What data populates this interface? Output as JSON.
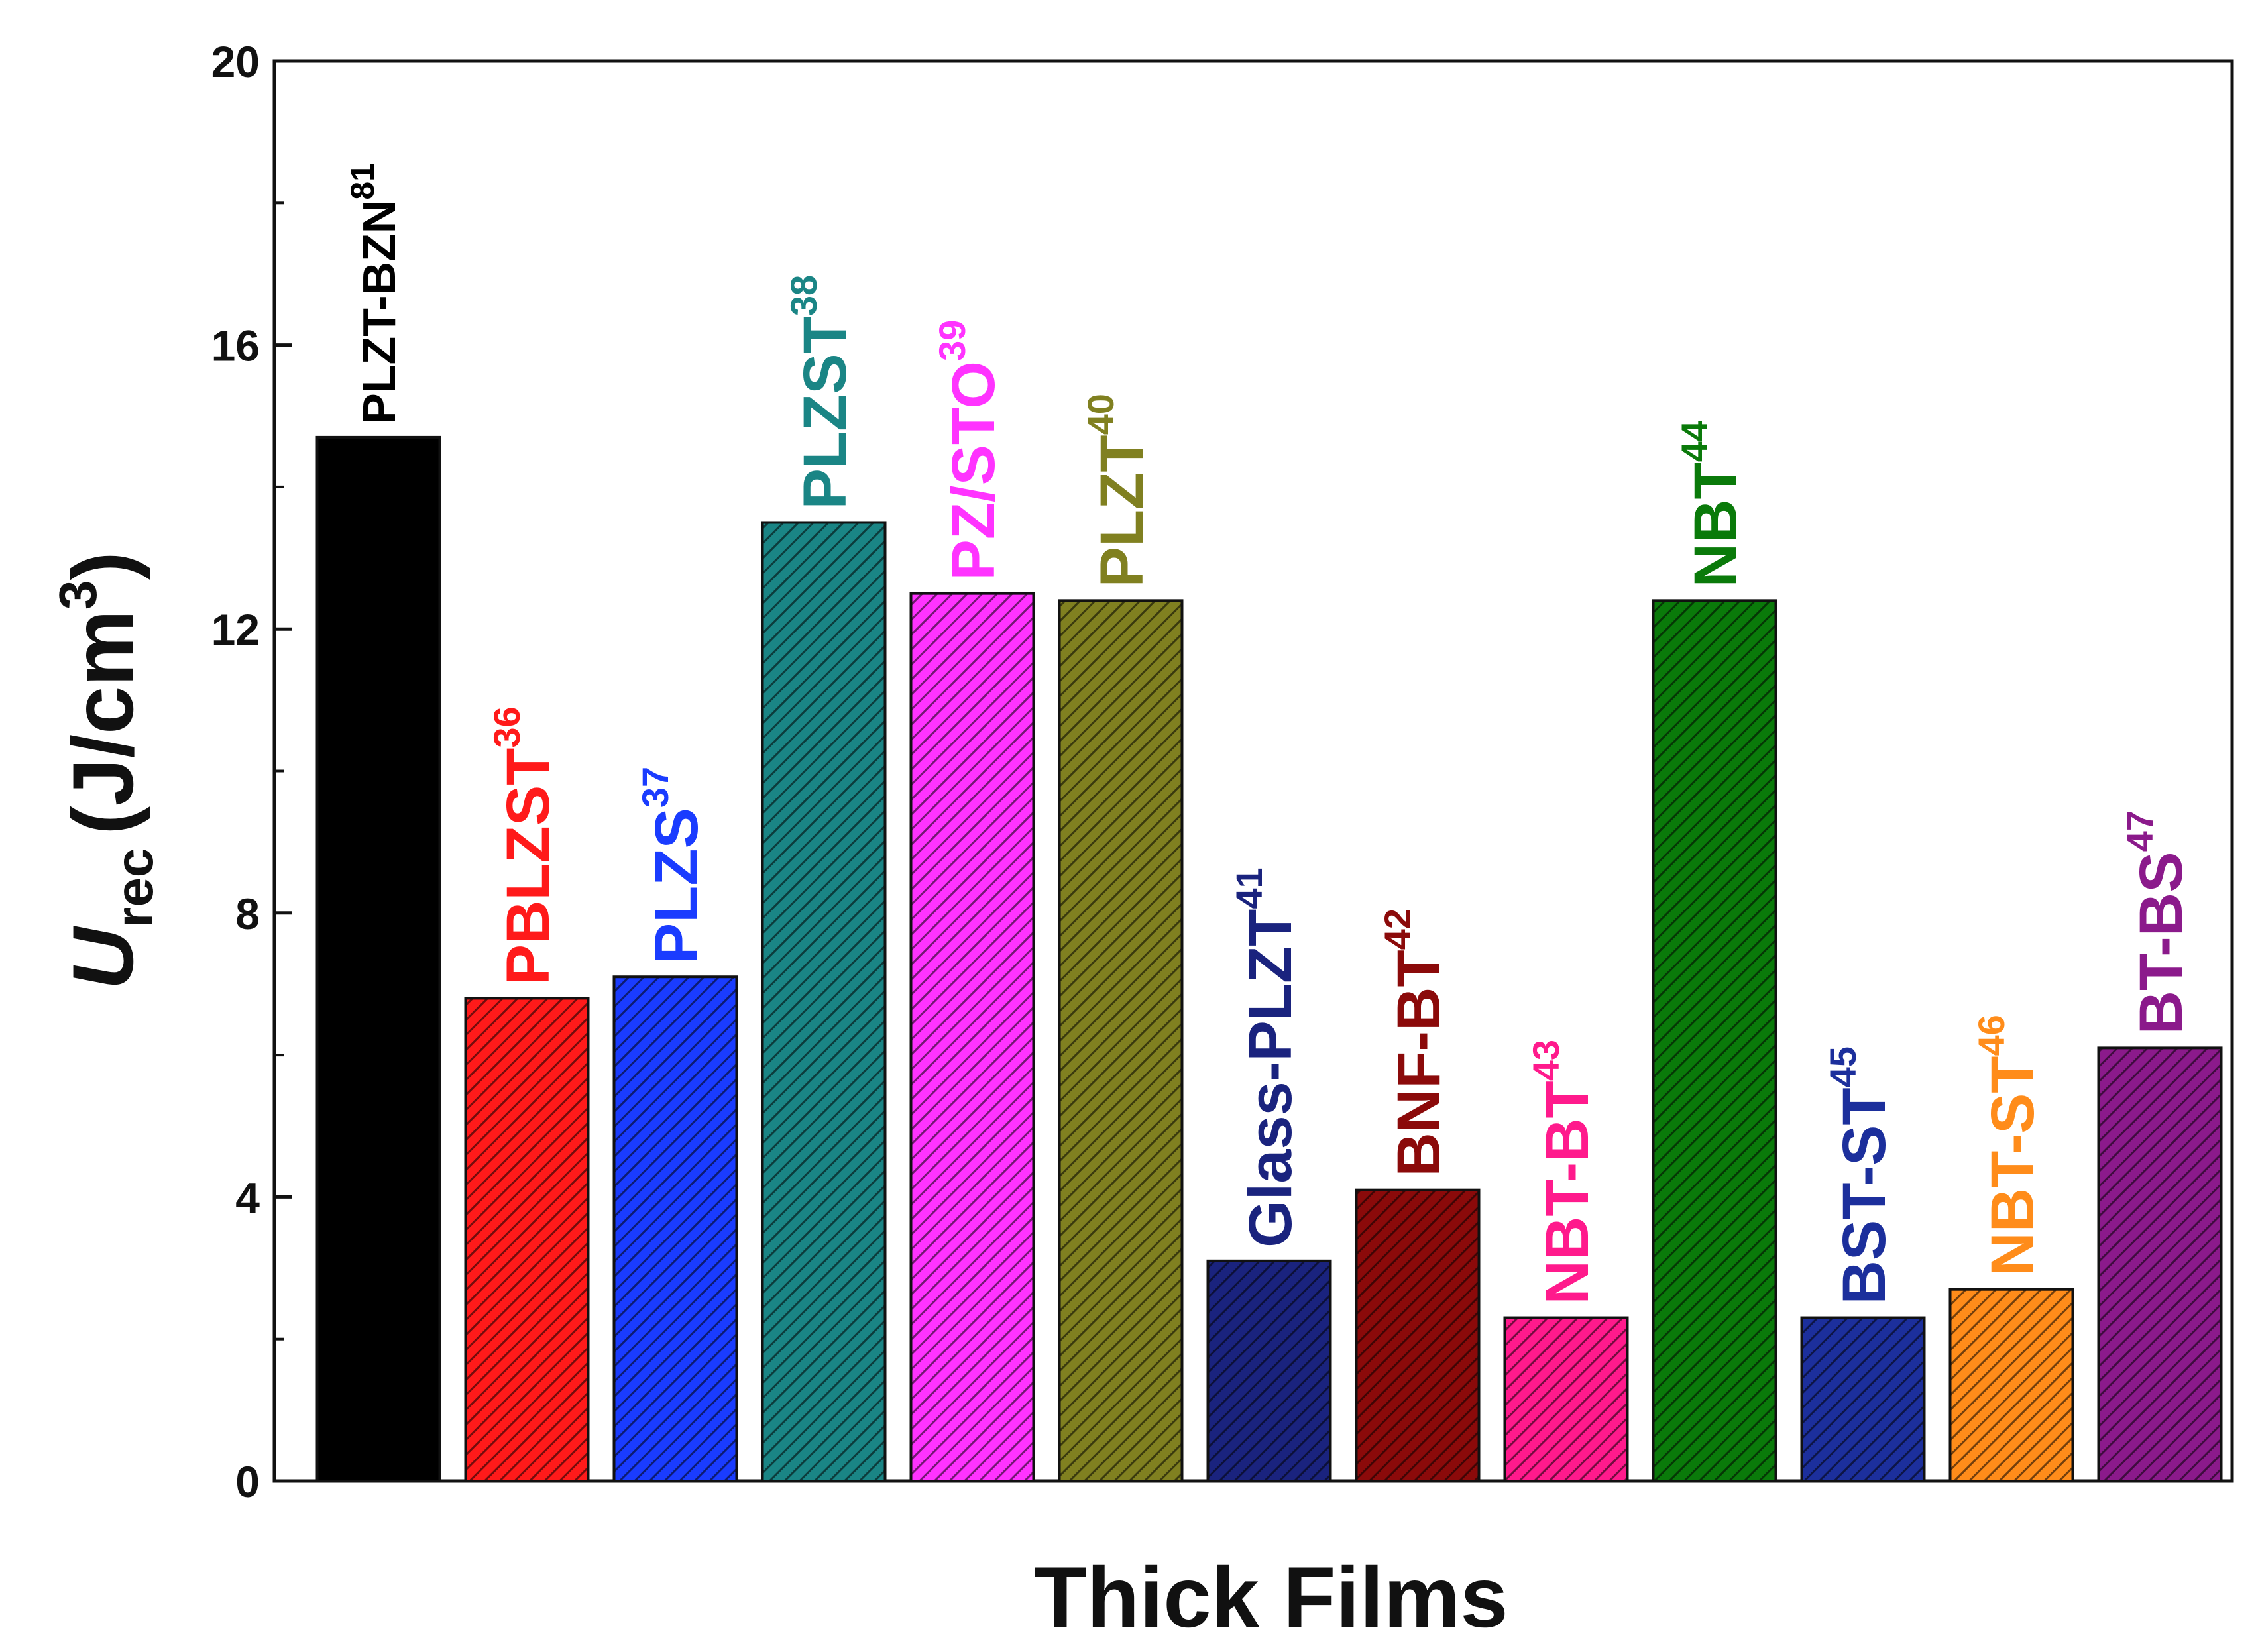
{
  "chart_data": {
    "type": "bar",
    "xlabel": "Thick Films",
    "ylabel": {
      "symbol": "U",
      "subscript": "rec",
      "unit": "(J/cm",
      "unit_superscript": "3",
      "unit_close": ")"
    },
    "categories": [
      "PLZT-BZN",
      "PBLZST",
      "PLZS",
      "PLZST",
      "PZ/STO",
      "PLZT",
      "Glass-PLZT",
      "BNF-BT",
      "NBT-BT",
      "NBT",
      "BST-ST",
      "NBT-ST",
      "BT-BS"
    ],
    "references": [
      "81",
      "36",
      "37",
      "38",
      "39",
      "40",
      "41",
      "42",
      "43",
      "44",
      "45",
      "46",
      "47"
    ],
    "values": [
      14.7,
      6.8,
      7.1,
      13.5,
      12.5,
      12.4,
      3.1,
      4.1,
      2.3,
      12.4,
      2.3,
      2.7,
      6.1
    ],
    "colors": [
      "#000000",
      "#ff1a1a",
      "#1a3cff",
      "#1a8585",
      "#ff33ff",
      "#808020",
      "#1a237e",
      "#8b0a0a",
      "#ff1a8c",
      "#0a7a0a",
      "#1c2f9c",
      "#ff8c1a",
      "#8b1a8b"
    ],
    "ylim": [
      0,
      20
    ],
    "yticks": [
      0,
      4,
      8,
      12,
      16,
      20
    ],
    "yminorticks": [
      2,
      6,
      10,
      14,
      18
    ]
  }
}
